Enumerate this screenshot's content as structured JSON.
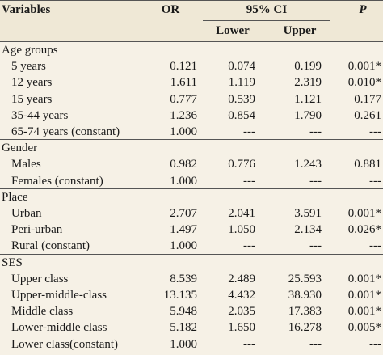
{
  "header": {
    "variables": "Variables",
    "or": "OR",
    "ci": "95% CI",
    "lower": "Lower",
    "upper": "Upper",
    "p": "P"
  },
  "groups": [
    {
      "label": "Age groups",
      "rows": [
        {
          "label": "5 years",
          "or": "0.121",
          "lower": "0.074",
          "upper": "0.199",
          "p": "0.001*"
        },
        {
          "label": "12 years",
          "or": "1.611",
          "lower": "1.119",
          "upper": "2.319",
          "p": "0.010*"
        },
        {
          "label": "15 years",
          "or": "0.777",
          "lower": "0.539",
          "upper": "1.121",
          "p": "0.177"
        },
        {
          "label": "35-44 years",
          "or": "1.236",
          "lower": "0.854",
          "upper": "1.790",
          "p": "0.261"
        },
        {
          "label": "65-74 years (constant)",
          "or": "1.000",
          "lower": "---",
          "upper": "---",
          "p": "---"
        }
      ]
    },
    {
      "label": "Gender",
      "rows": [
        {
          "label": "Males",
          "or": "0.982",
          "lower": "0.776",
          "upper": "1.243",
          "p": "0.881"
        },
        {
          "label": "Females (constant)",
          "or": "1.000",
          "lower": "---",
          "upper": "---",
          "p": "---"
        }
      ]
    },
    {
      "label": "Place",
      "rows": [
        {
          "label": "Urban",
          "or": "2.707",
          "lower": "2.041",
          "upper": "3.591",
          "p": "0.001*"
        },
        {
          "label": "Peri-urban",
          "or": "1.497",
          "lower": "1.050",
          "upper": "2.134",
          "p": "0.026*"
        },
        {
          "label": "Rural (constant)",
          "or": "1.000",
          "lower": "---",
          "upper": "---",
          "p": "---"
        }
      ]
    },
    {
      "label": "SES",
      "rows": [
        {
          "label": "Upper class",
          "or": "8.539",
          "lower": "2.489",
          "upper": "25.593",
          "p": "0.001*"
        },
        {
          "label": "Upper-middle-class",
          "or": "13.135",
          "lower": "4.432",
          "upper": "38.930",
          "p": "0.001*"
        },
        {
          "label": "Middle class",
          "or": "5.948",
          "lower": "2.035",
          "upper": "17.383",
          "p": "0.001*"
        },
        {
          "label": "Lower-middle class",
          "or": "5.182",
          "lower": "1.650",
          "upper": "16.278",
          "p": "0.005*"
        },
        {
          "label": "Lower class(constant)",
          "or": "1.000",
          "lower": "---",
          "upper": "---",
          "p": "---"
        }
      ]
    }
  ]
}
